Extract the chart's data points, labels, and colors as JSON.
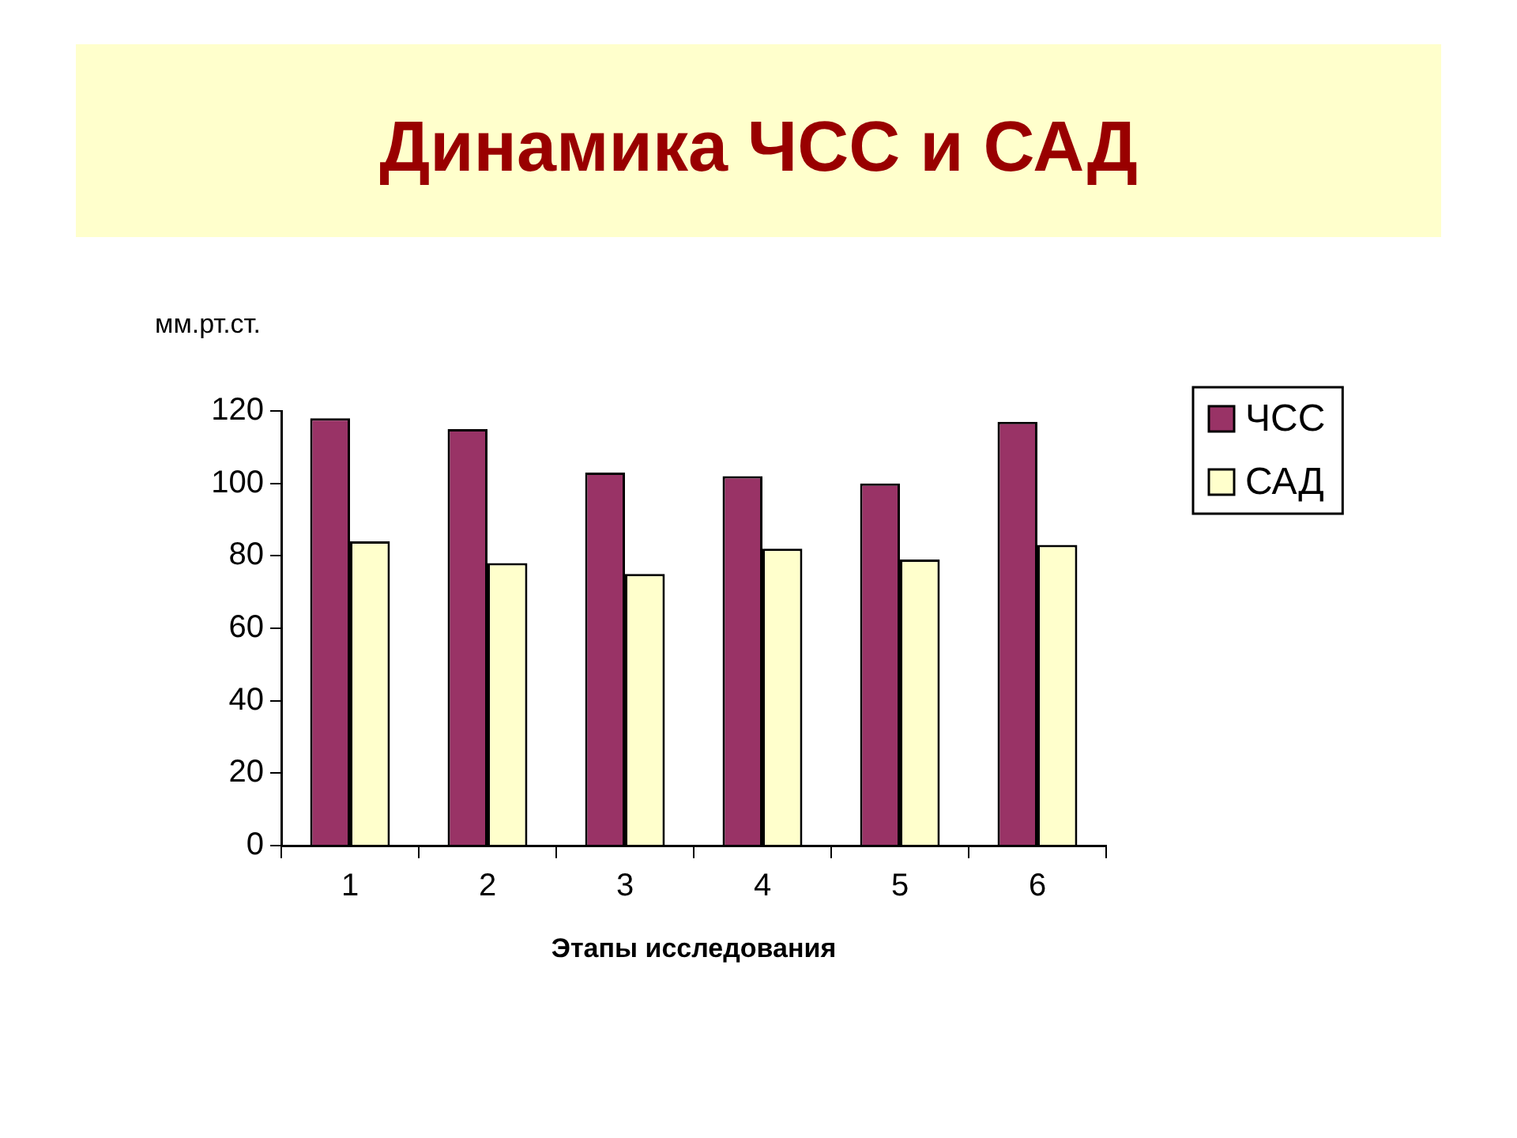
{
  "chart_data": {
    "type": "bar",
    "title": "Динамика ЧСС и САД",
    "ylabel": "мм.рт.ст.",
    "xlabel": "Этапы исследования",
    "categories": [
      "1",
      "2",
      "3",
      "4",
      "5",
      "6"
    ],
    "series": [
      {
        "name": "ЧСС",
        "color": "#993366",
        "values": [
          118,
          115,
          103,
          102,
          100,
          117
        ]
      },
      {
        "name": "САД",
        "color": "#ffffcc",
        "values": [
          84,
          78,
          75,
          82,
          79,
          83
        ]
      }
    ],
    "ylim": [
      0,
      120
    ],
    "yticks": [
      0,
      20,
      40,
      60,
      80,
      100,
      120
    ],
    "grid": false,
    "legend": "right"
  }
}
